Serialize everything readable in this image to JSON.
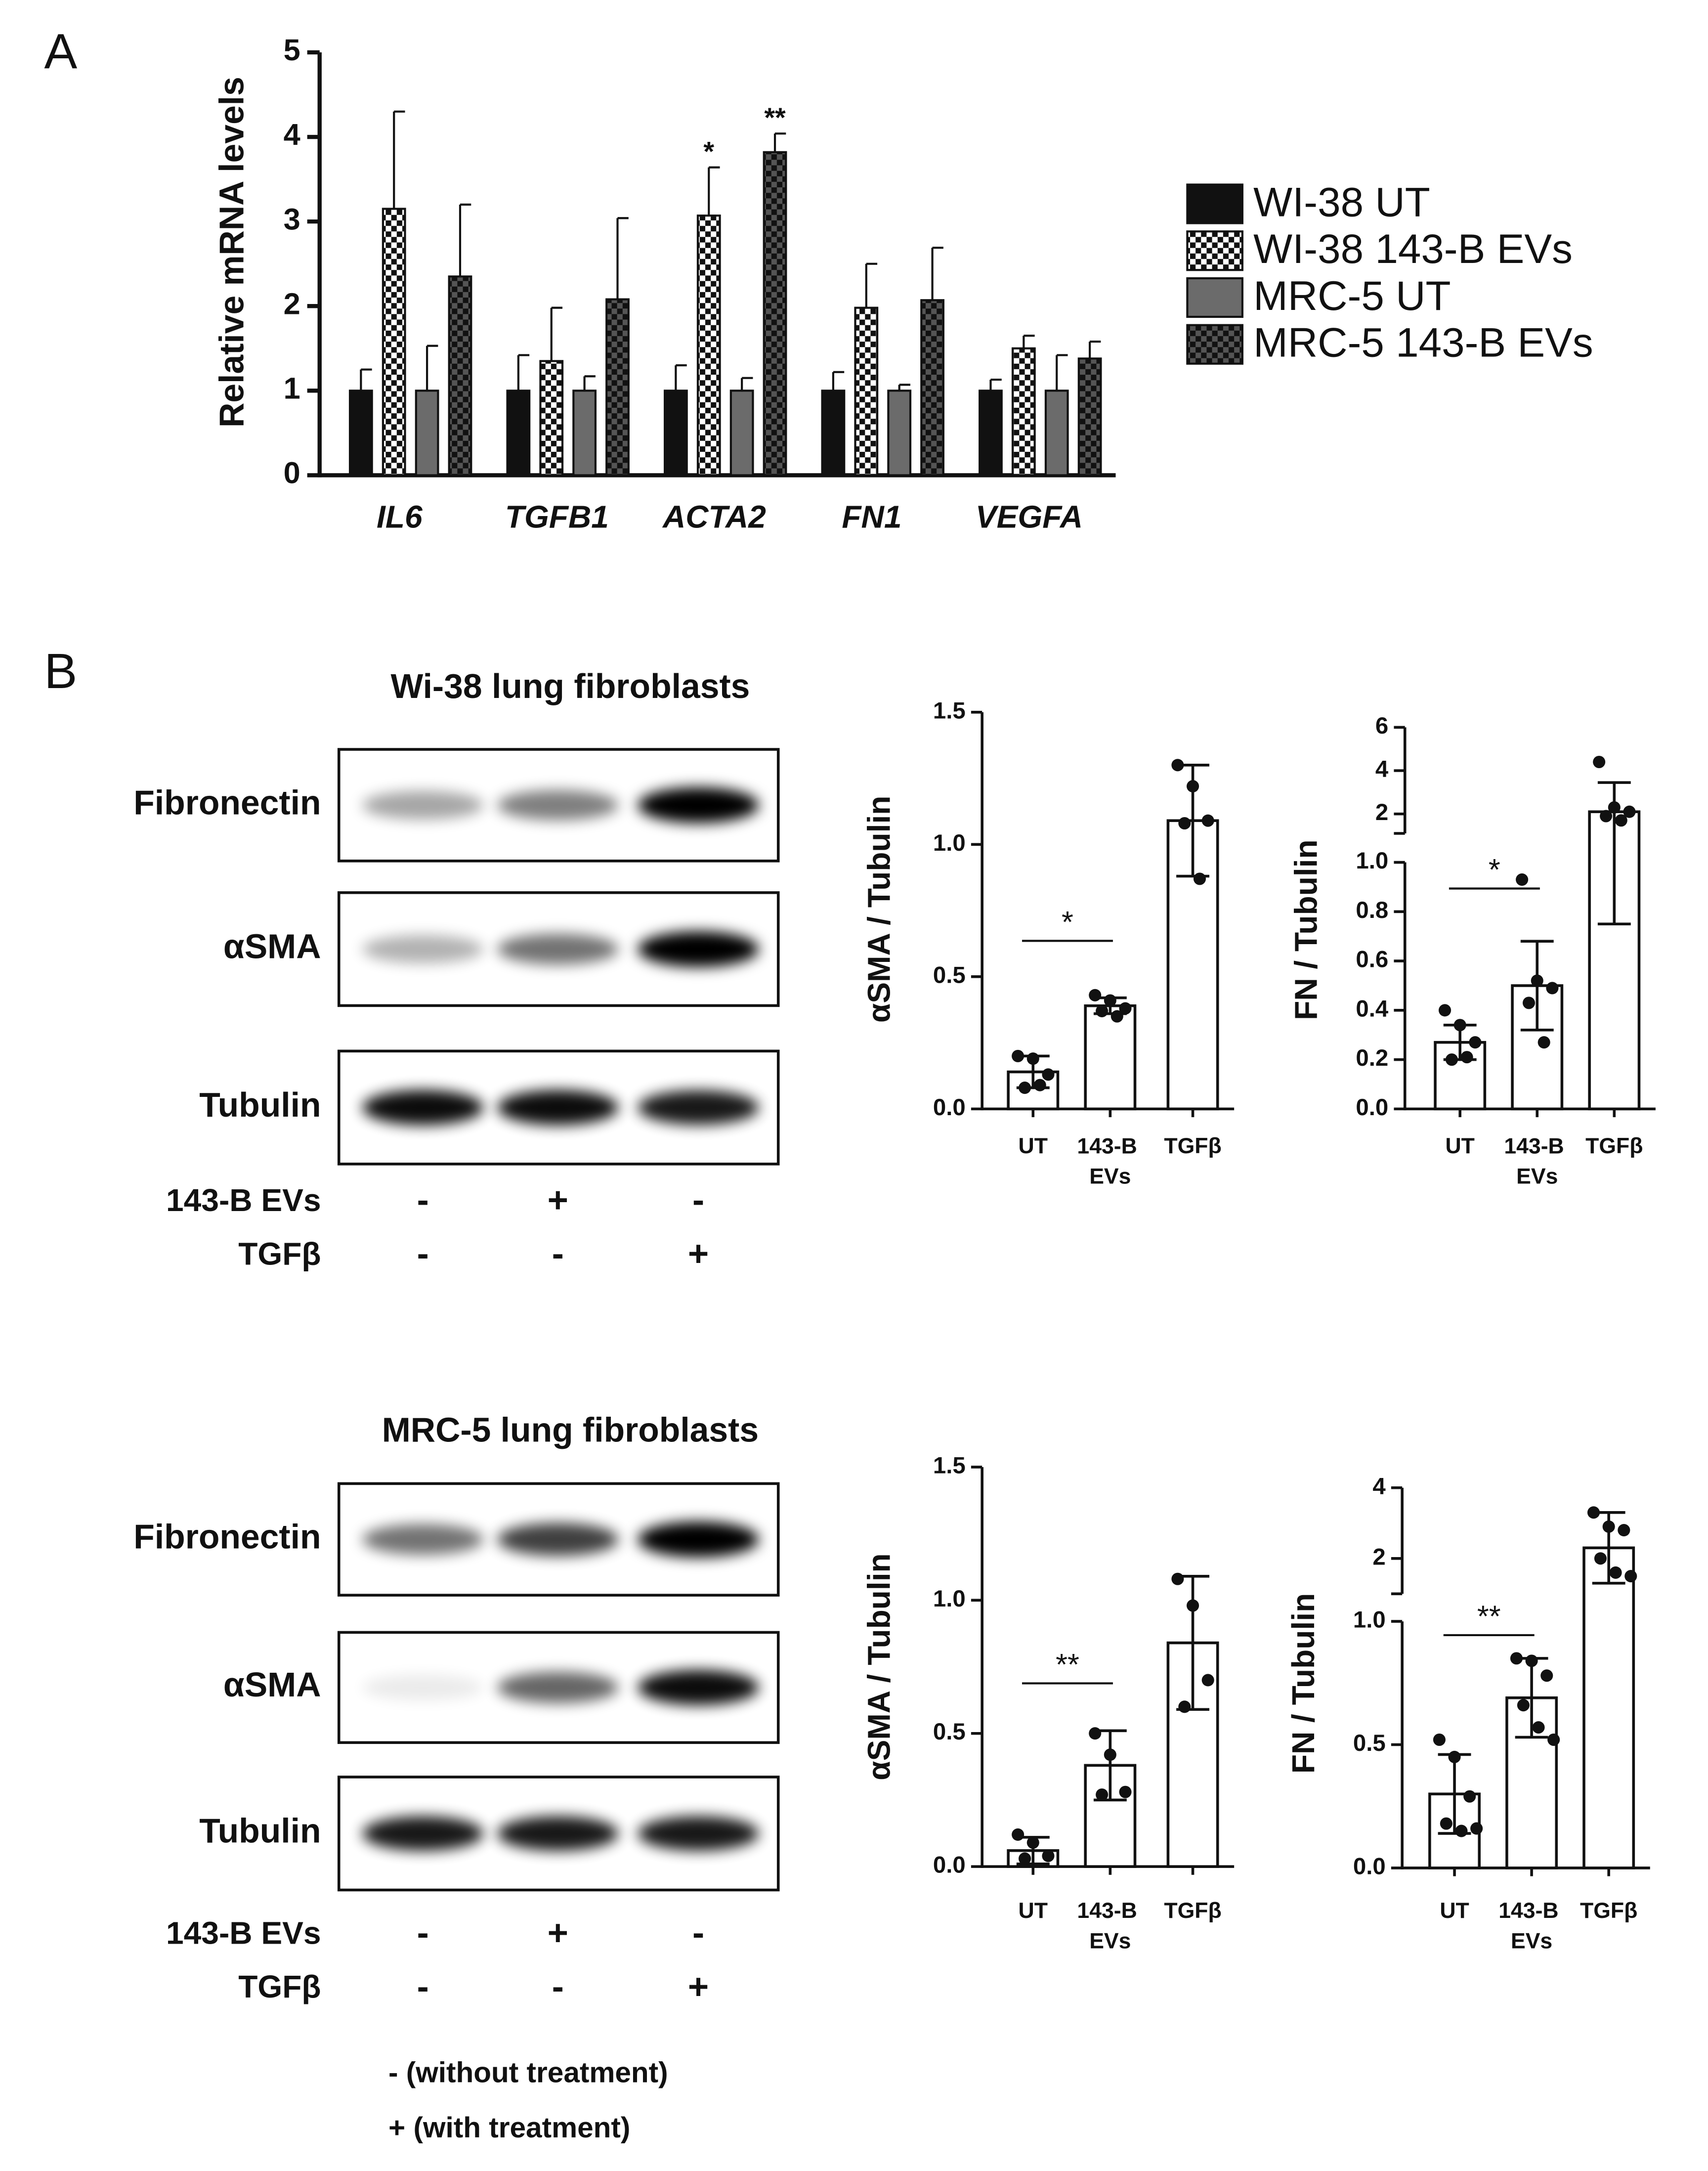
{
  "panel_labels": [
    "A",
    "B"
  ],
  "chart_data": [
    {
      "type": "grouped_bar",
      "ylabel": "Relative mRNA levels",
      "categories": [
        "IL6",
        "TGFB1",
        "ACTA2",
        "FN1",
        "VEGFA"
      ],
      "series": [
        {
          "name": "WI-38 UT",
          "color": "#111111",
          "values": [
            1,
            1,
            1,
            1,
            1
          ],
          "errors": [
            0.25,
            0.42,
            0.3,
            0.22,
            0.13
          ]
        },
        {
          "name": "WI-38 143-B EVs",
          "color": "#ffffff",
          "pattern": "checkerboard",
          "pattern_color": "#111111",
          "values": [
            3.15,
            1.35,
            3.07,
            1.98,
            1.5
          ],
          "errors": [
            1.15,
            0.63,
            0.57,
            0.52,
            0.15
          ]
        },
        {
          "name": "MRC-5 UT",
          "color": "#6b6b6b",
          "values": [
            1,
            1,
            1,
            1,
            1
          ],
          "errors": [
            0.53,
            0.17,
            0.15,
            0.07,
            0.42
          ]
        },
        {
          "name": "MRC-5 143-B EVs",
          "color": "#555555",
          "pattern": "checkerboard",
          "pattern_color": "#111111",
          "values": [
            2.35,
            2.08,
            3.82,
            2.07,
            1.38
          ],
          "errors": [
            0.85,
            0.96,
            0.22,
            0.62,
            0.2
          ]
        }
      ],
      "annotations": [
        {
          "text": "*",
          "category": "ACTA2",
          "series": "WI-38 143-B EVs"
        },
        {
          "text": "**",
          "category": "ACTA2",
          "series": "MRC-5 143-B EVs"
        }
      ],
      "ylim": [
        0,
        5
      ],
      "yticks": [
        0,
        1,
        2,
        3,
        4,
        5
      ],
      "legend": "right"
    },
    {
      "type": "bar_points",
      "ylabel": "αSMA / Tubulin",
      "categories": [
        "UT",
        "143-B EVs",
        "TGFβ"
      ],
      "values": [
        0.14,
        0.39,
        1.09
      ],
      "errors": [
        0.06,
        0.03,
        0.21
      ],
      "points": [
        [
          0.2,
          0.19,
          0.13,
          0.08,
          0.09
        ],
        [
          0.43,
          0.41,
          0.38,
          0.37,
          0.35
        ],
        [
          1.3,
          1.22,
          1.09,
          1.08,
          0.87
        ]
      ],
      "annotations": [
        {
          "text": "*",
          "between": [
            "UT",
            "143-B EVs"
          ]
        }
      ],
      "ylim": [
        0,
        1.5
      ],
      "yticks": [
        {
          "value": 0,
          "label": "0.0"
        },
        0.5,
        {
          "value": 1,
          "label": "1.0"
        },
        1.5
      ]
    },
    {
      "type": "bar_points",
      "ylabel": "FN / Tubulin",
      "categories": [
        "UT",
        "143-B EVs",
        "TGFβ"
      ],
      "values": [
        0.27,
        0.5,
        2.1
      ],
      "errors": [
        0.07,
        0.18,
        1.35
      ],
      "points": [
        [
          0.4,
          0.34,
          0.27,
          0.2,
          0.21
        ],
        [
          0.93,
          0.52,
          0.49,
          0.43,
          0.27
        ],
        [
          4.4,
          2.3,
          2.1,
          1.9,
          1.7
        ]
      ],
      "annotations": [
        {
          "text": "*",
          "between": [
            "UT",
            "143-B EVs"
          ]
        }
      ],
      "ylim": [
        0,
        1
      ],
      "yticks": [
        {
          "value": 0,
          "label": "0.0"
        },
        0.2,
        0.4,
        0.6,
        0.8,
        {
          "value": 1,
          "label": "1.0"
        }
      ],
      "axis_break": true,
      "ylim_upper": [
        1.1,
        6
      ],
      "yticks_upper": [
        2,
        4,
        6
      ]
    },
    {
      "type": "bar_points",
      "ylabel": "αSMA / Tubulin",
      "categories": [
        "UT",
        "143-B EVs",
        "TGFβ"
      ],
      "values": [
        0.06,
        0.38,
        0.84
      ],
      "errors": [
        0.05,
        0.13,
        0.25
      ],
      "points": [
        [
          0.12,
          0.09,
          0.04,
          0.03
        ],
        [
          0.5,
          0.42,
          0.28,
          0.27
        ],
        [
          1.08,
          0.98,
          0.7,
          0.6
        ]
      ],
      "annotations": [
        {
          "text": "**",
          "between": [
            "UT",
            "143-B EVs"
          ]
        }
      ],
      "ylim": [
        0,
        1.5
      ],
      "yticks": [
        {
          "value": 0,
          "label": "0.0"
        },
        0.5,
        {
          "value": 1,
          "label": "1.0"
        },
        1.5
      ]
    },
    {
      "type": "bar_points",
      "ylabel": "FN / Tubulin",
      "categories": [
        "UT",
        "143-B EVs",
        "TGFβ"
      ],
      "values": [
        0.3,
        0.69,
        2.3
      ],
      "errors": [
        0.16,
        0.16,
        1.0
      ],
      "points": [
        [
          0.52,
          0.45,
          0.29,
          0.18,
          0.15,
          0.16
        ],
        [
          0.85,
          0.84,
          0.78,
          0.66,
          0.57,
          0.52
        ],
        [
          3.3,
          2.9,
          2.8,
          2.0,
          1.6,
          1.5
        ]
      ],
      "annotations": [
        {
          "text": "**",
          "between": [
            "UT",
            "143-B EVs"
          ]
        }
      ],
      "ylim": [
        0,
        1
      ],
      "yticks": [
        {
          "value": 0,
          "label": "0.0"
        },
        0.5,
        {
          "value": 1,
          "label": "1.0"
        }
      ],
      "axis_break": true,
      "ylim_upper": [
        1,
        4
      ],
      "yticks_upper": [
        2,
        4
      ]
    }
  ],
  "blots": [
    {
      "title": "Wi-38 lung fibroblasts",
      "bands": [
        "Fibronectin",
        "αSMA",
        "Tubulin"
      ],
      "treatments": [
        {
          "name": "143-B EVs",
          "lanes": [
            "-",
            "+",
            "-"
          ]
        },
        {
          "name": "TGFβ",
          "lanes": [
            "-",
            "-",
            "+"
          ]
        }
      ]
    },
    {
      "title": "MRC-5 lung fibroblasts",
      "bands": [
        "Fibronectin",
        "αSMA",
        "Tubulin"
      ],
      "treatments": [
        {
          "name": "143-B EVs",
          "lanes": [
            "-",
            "+",
            "-"
          ]
        },
        {
          "name": "TGFβ",
          "lanes": [
            "-",
            "-",
            "+"
          ]
        }
      ]
    }
  ],
  "notes": [
    "- (without treatment)",
    "+ (with treatment)"
  ]
}
